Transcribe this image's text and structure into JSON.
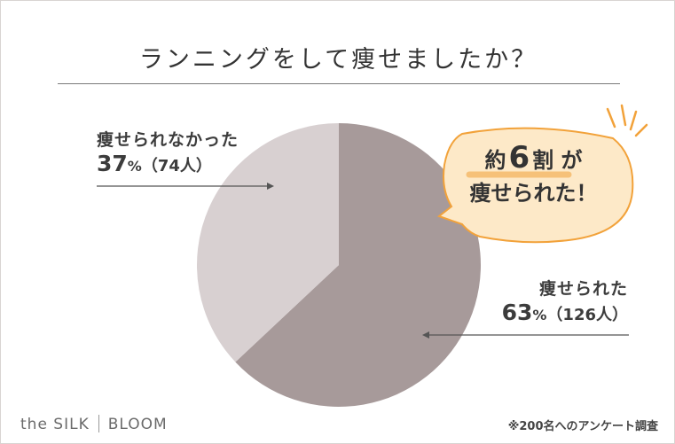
{
  "title": "ランニングをして痩せましたか？",
  "colors": {
    "slice_main": "#a79a9a",
    "slice_minor": "#d8d0d1",
    "bubble_fill": "#fde9c8",
    "bubble_stroke": "#f2a23a",
    "accent": "#f2a23a"
  },
  "chart_data": {
    "type": "pie",
    "title": "ランニングをして痩せましたか？",
    "slices": [
      {
        "label": "痩せられた",
        "percent": 63,
        "count": 126,
        "color": "#a79a9a"
      },
      {
        "label": "痩せられなかった",
        "percent": 37,
        "count": 74,
        "color": "#d8d0d1"
      }
    ]
  },
  "labels": {
    "lost": {
      "name": "痩せられた",
      "pct": "63",
      "pct_unit": "%",
      "count": "（126人）"
    },
    "not_lost": {
      "name": "痩せられなかった",
      "pct": "37",
      "pct_unit": "%",
      "count": "（74人）"
    }
  },
  "callout": {
    "prefix": "約",
    "number": "6",
    "suffix1": "割",
    "suffix2": "が",
    "line2": "痩せられた！"
  },
  "brand": {
    "left": "the SILK",
    "right": "BLOOM"
  },
  "note": "※200名へのアンケート調査"
}
